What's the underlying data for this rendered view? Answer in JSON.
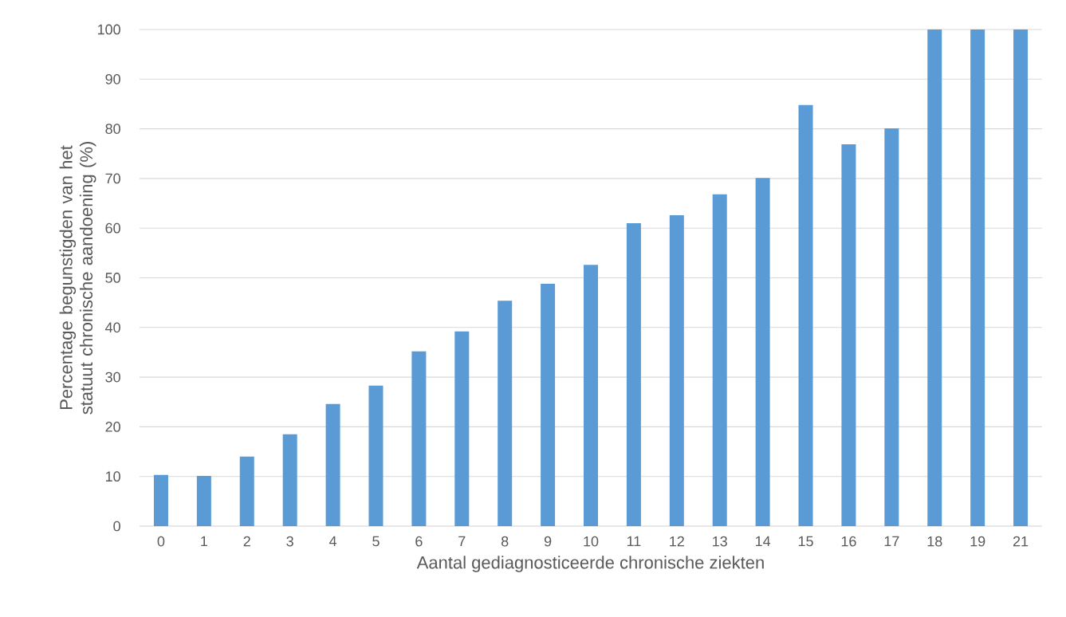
{
  "chart_data": {
    "type": "bar",
    "xlabel": "Aantal gediagnosticeerde chronische ziekten",
    "ylabel": "Percentage begunstigden van het statuut chronische aandoening (%)",
    "categories": [
      "0",
      "1",
      "2",
      "3",
      "4",
      "5",
      "6",
      "7",
      "8",
      "9",
      "10",
      "11",
      "12",
      "13",
      "14",
      "15",
      "16",
      "17",
      "18",
      "19",
      "21"
    ],
    "values": [
      10.3,
      10.1,
      14.0,
      18.5,
      24.6,
      28.3,
      35.2,
      39.2,
      45.4,
      48.8,
      52.6,
      61.0,
      62.6,
      66.8,
      70.1,
      84.8,
      76.9,
      80.1,
      100,
      100,
      100
    ],
    "color": "#5b9bd5",
    "ylim": [
      0,
      100
    ],
    "yticks": [
      0,
      10,
      20,
      30,
      40,
      50,
      60,
      70,
      80,
      90,
      100
    ],
    "grid": "y"
  }
}
